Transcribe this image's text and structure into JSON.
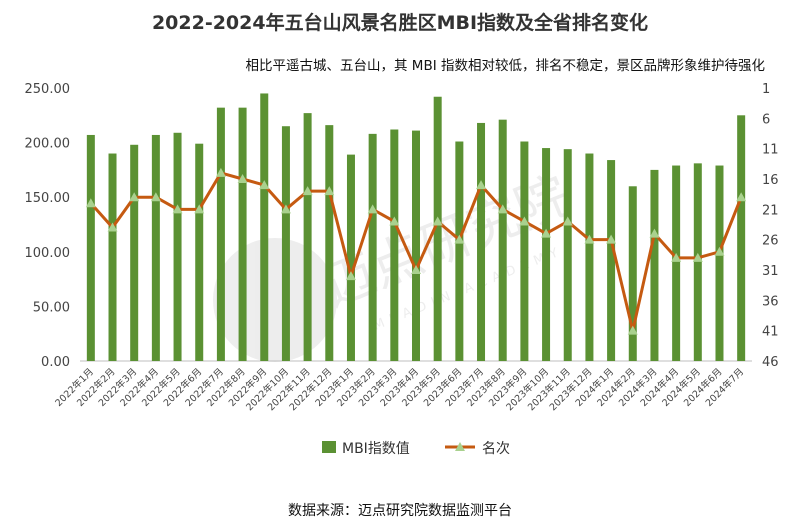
{
  "header": {
    "title": "2022-2024年五台山风景名胜区MBI指数及全省排名变化",
    "subtitle": "相比平遥古城、五台山，其 MBI 指数相对较低，排名不稳定，景区品牌形象维护待强化"
  },
  "footer": {
    "source": "数据来源：迈点研究院数据监测平台"
  },
  "watermark": {
    "cn": "迈点研究院",
    "en": "MEADIN ACADEMY"
  },
  "colors": {
    "bar": "#5b9133",
    "line": "#c55a11",
    "marker": "#a9d18e",
    "axis": "#bfbfbf"
  },
  "chart_data": {
    "type": "bar",
    "categories": [
      "2022年1月",
      "2022年2月",
      "2022年3月",
      "2022年4月",
      "2022年5月",
      "2022年6月",
      "2022年7月",
      "2022年8月",
      "2022年9月",
      "2022年10月",
      "2022年11月",
      "2022年12月",
      "2023年1月",
      "2023年2月",
      "2023年3月",
      "2023年4月",
      "2023年5月",
      "2023年6月",
      "2023年7月",
      "2023年8月",
      "2023年9月",
      "2023年10月",
      "2023年11月",
      "2023年12月",
      "2024年1月",
      "2024年2月",
      "2024年3月",
      "2024年4月",
      "2024年5月",
      "2024年6月",
      "2024年7月"
    ],
    "series": [
      {
        "name": "MBI指数值",
        "type": "bar",
        "axis": "left",
        "values": [
          207,
          190,
          198,
          207,
          209,
          199,
          232,
          232,
          245,
          215,
          227,
          216,
          189,
          208,
          212,
          211,
          242,
          201,
          218,
          221,
          201,
          195,
          194,
          190,
          184,
          160,
          175,
          179,
          181,
          179,
          225
        ]
      },
      {
        "name": "名次",
        "type": "line",
        "axis": "right",
        "values": [
          20,
          24,
          19,
          19,
          21,
          21,
          15,
          16,
          17,
          21,
          18,
          18,
          32,
          21,
          23,
          31,
          23,
          26,
          17,
          21,
          23,
          25,
          23,
          26,
          26,
          41,
          25,
          29,
          29,
          28,
          19
        ]
      }
    ],
    "y_left": {
      "min": 0,
      "max": 250,
      "step": 50,
      "ticks": [
        "0.00",
        "50.00",
        "100.00",
        "150.00",
        "200.00",
        "250.00"
      ]
    },
    "y_right": {
      "min": 1,
      "max": 46,
      "inverted": true,
      "ticks": [
        "1",
        "6",
        "11",
        "16",
        "21",
        "26",
        "31",
        "36",
        "41",
        "46"
      ]
    },
    "legend": [
      "MBI指数值",
      "名次"
    ],
    "legend_position": "bottom"
  }
}
